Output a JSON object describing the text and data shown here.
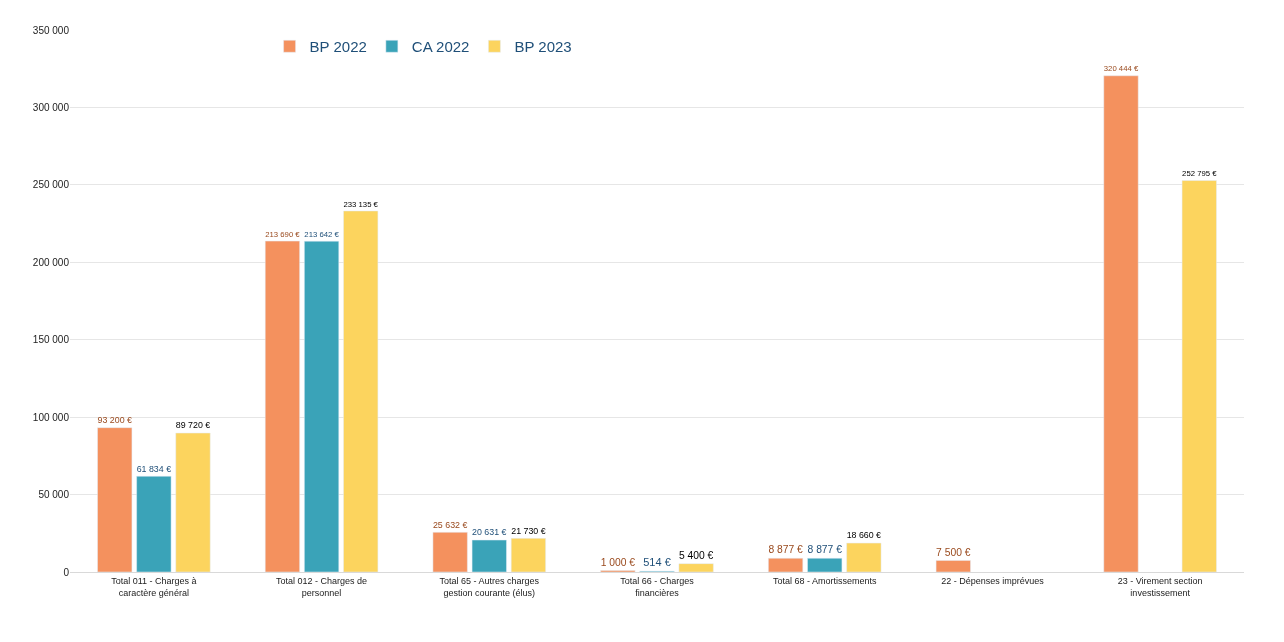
{
  "chart_data": {
    "type": "bar",
    "categories": [
      "Total 011 - Charges à caractère général",
      "Total 012 - Charges de personnel",
      "Total 65 - Autres charges gestion courante (élus)",
      "Total 66 - Charges financières",
      "Total 68 - Amortissements",
      "22 - Dépenses imprévues",
      "23 - Virement section investissement"
    ],
    "series": [
      {
        "name": "BP 2022",
        "color": "#f4915e",
        "values": [
          93200,
          213690,
          25632,
          1000,
          8877,
          7500,
          320444
        ],
        "value_labels": [
          "93 200 €",
          "213 690 €",
          "25 632 €",
          "1 000 €",
          "8 877 €",
          "7 500 €",
          "320 444 €"
        ]
      },
      {
        "name": "CA 2022",
        "color": "#3aa3b8",
        "values": [
          61834,
          213642,
          20631,
          514,
          8877,
          null,
          null
        ],
        "value_labels": [
          "61 834 €",
          "213 642 €",
          "20 631 €",
          "514 €",
          "8 877 €",
          null,
          null
        ]
      },
      {
        "name": "BP 2023",
        "color": "#fcd45e",
        "values": [
          89720,
          233135,
          21730,
          5400,
          18660,
          null,
          252795
        ],
        "value_labels": [
          "89 720 €",
          "233 135 €",
          "21 730 €",
          "5 400 €",
          "18 660 €",
          null,
          "252 795 €"
        ]
      }
    ],
    "ylim": [
      0,
      350000
    ],
    "yticks": [
      {
        "value": 0,
        "label": "0"
      },
      {
        "value": 50000,
        "label": "50 000"
      },
      {
        "value": 100000,
        "label": "100 000"
      },
      {
        "value": 150000,
        "label": "150 000"
      },
      {
        "value": 200000,
        "label": "200 000"
      },
      {
        "value": 250000,
        "label": "250 000"
      },
      {
        "value": 300000,
        "label": "300 000"
      },
      {
        "value": 350000,
        "label": "350 000"
      }
    ],
    "grid": "y",
    "legend": "top left"
  }
}
